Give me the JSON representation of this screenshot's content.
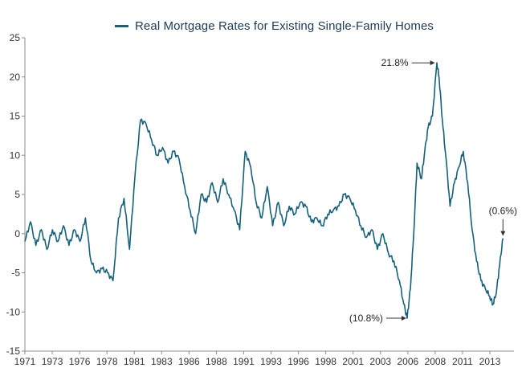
{
  "colors": {
    "series": "#15607a",
    "axis": "#8c8c8c",
    "grid": "#e8e8e8",
    "arrow": "#333333"
  },
  "chart_data": {
    "type": "line",
    "title": "",
    "xlabel": "",
    "ylabel": "",
    "ylim": [
      -15,
      25
    ],
    "grid": false,
    "legend": "top",
    "x_tick_labels": [
      "1971",
      "1973",
      "1976",
      "1978",
      "1981",
      "1983",
      "1986",
      "1988",
      "1991",
      "1993",
      "1996",
      "1998",
      "2001",
      "2003",
      "2006",
      "2008",
      "2011",
      "2013"
    ],
    "y_tick_labels": [
      "25",
      "20",
      "15",
      "10",
      "5",
      "0",
      "-5",
      "-10",
      "-15"
    ],
    "series": [
      {
        "name": "Real Mortgage Rates for Existing Single-Family Homes",
        "x": [
          1971.0,
          1971.5,
          1972.0,
          1972.5,
          1973.0,
          1973.5,
          1974.0,
          1974.5,
          1975.0,
          1975.5,
          1976.0,
          1976.5,
          1977.0,
          1977.5,
          1978.0,
          1978.5,
          1979.0,
          1979.5,
          1980.0,
          1980.5,
          1981.0,
          1981.5,
          1982.0,
          1982.5,
          1983.0,
          1983.5,
          1984.0,
          1984.5,
          1985.0,
          1985.5,
          1986.0,
          1986.5,
          1987.0,
          1987.5,
          1988.0,
          1988.5,
          1989.0,
          1989.5,
          1990.0,
          1990.5,
          1991.0,
          1991.5,
          1992.0,
          1992.5,
          1993.0,
          1993.5,
          1994.0,
          1994.5,
          1995.0,
          1995.5,
          1996.0,
          1996.5,
          1997.0,
          1997.5,
          1998.0,
          1998.5,
          1999.0,
          1999.5,
          2000.0,
          2000.5,
          2001.0,
          2001.5,
          2002.0,
          2002.5,
          2003.0,
          2003.5,
          2004.0,
          2004.5,
          2005.0,
          2005.4,
          2005.7,
          2006.0,
          2006.3,
          2006.6,
          2007.0,
          2007.3,
          2007.6,
          2008.0,
          2008.4,
          2008.6,
          2008.9,
          2009.2,
          2009.6,
          2010.0,
          2010.4,
          2010.8,
          2011.2,
          2011.6,
          2012.0,
          2012.4,
          2012.8,
          2013.2,
          2013.5,
          2013.8,
          2014.1,
          2014.4
        ],
        "values": [
          -1.0,
          1.5,
          -1.5,
          0.5,
          -2.0,
          0.5,
          -1.0,
          1.0,
          -1.5,
          0.5,
          -1.0,
          2.0,
          -3.5,
          -5.0,
          -4.5,
          -5.0,
          -6.0,
          2.0,
          4.5,
          -2.0,
          7.5,
          14.5,
          14.0,
          12.0,
          10.0,
          11.0,
          9.0,
          10.5,
          9.5,
          6.0,
          3.0,
          0.0,
          5.0,
          4.0,
          6.5,
          4.0,
          7.0,
          5.0,
          3.0,
          0.5,
          10.5,
          8.5,
          4.0,
          2.0,
          6.0,
          1.0,
          4.0,
          1.0,
          3.5,
          2.5,
          4.0,
          3.5,
          1.5,
          2.0,
          1.0,
          2.5,
          3.0,
          3.5,
          5.0,
          4.5,
          3.0,
          1.0,
          -0.5,
          0.5,
          -2.0,
          0.0,
          -2.5,
          -3.5,
          -6.0,
          -9.0,
          -10.8,
          -7.0,
          0.0,
          9.0,
          7.0,
          10.5,
          13.5,
          15.0,
          21.8,
          20.0,
          14.5,
          10.0,
          3.5,
          6.5,
          8.5,
          10.5,
          6.5,
          0.5,
          -3.5,
          -6.0,
          -7.0,
          -8.0,
          -9.0,
          -7.5,
          -4.0,
          -0.6
        ]
      }
    ],
    "annotations": [
      {
        "label": "21.8%",
        "x": 2008.3,
        "y": 21.8
      },
      {
        "label": "(10.8%)",
        "x": 2005.7,
        "y": -10.8
      },
      {
        "label": "(0.6%)",
        "x": 2014.4,
        "y": -0.6
      }
    ]
  }
}
